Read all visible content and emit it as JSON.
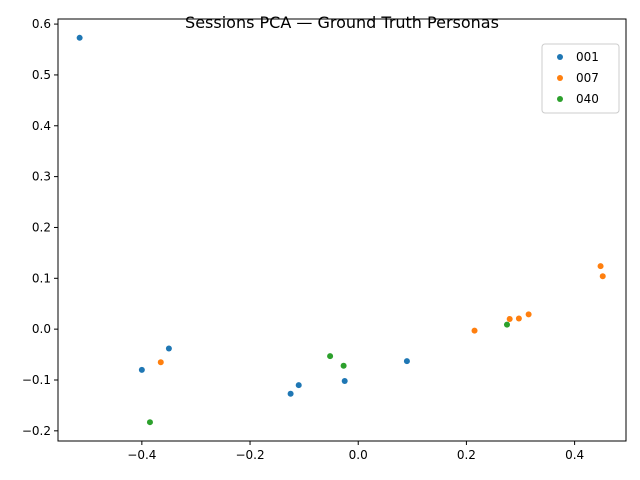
{
  "chart_data": {
    "type": "scatter",
    "title": "Sessions PCA — Ground Truth Personas",
    "xlabel": "",
    "ylabel": "",
    "xlim": [
      -0.555,
      0.495
    ],
    "ylim": [
      -0.22,
      0.61
    ],
    "xticks": [
      -0.4,
      -0.2,
      0.0,
      0.2,
      0.4
    ],
    "xtick_labels": [
      "−0.4",
      "−0.2",
      "0.0",
      "0.2",
      "0.4"
    ],
    "yticks": [
      -0.2,
      -0.1,
      0.0,
      0.1,
      0.2,
      0.3,
      0.4,
      0.5,
      0.6
    ],
    "ytick_labels": [
      "−0.2",
      "−0.1",
      "0.0",
      "0.1",
      "0.2",
      "0.3",
      "0.4",
      "0.5",
      "0.6"
    ],
    "grid": false,
    "legend_position": "top-right",
    "series": [
      {
        "name": "001",
        "color": "#1f77b4",
        "points": [
          [
            -0.515,
            0.573
          ],
          [
            -0.35,
            -0.038
          ],
          [
            -0.4,
            -0.08
          ],
          [
            -0.11,
            -0.11
          ],
          [
            -0.125,
            -0.127
          ],
          [
            -0.025,
            -0.102
          ],
          [
            0.09,
            -0.063
          ]
        ]
      },
      {
        "name": "007",
        "color": "#ff7f0e",
        "points": [
          [
            -0.365,
            -0.065
          ],
          [
            0.215,
            -0.003
          ],
          [
            0.28,
            0.02
          ],
          [
            0.297,
            0.021
          ],
          [
            0.315,
            0.029
          ],
          [
            0.448,
            0.124
          ],
          [
            0.452,
            0.104
          ]
        ]
      },
      {
        "name": "040",
        "color": "#2ca02c",
        "points": [
          [
            -0.052,
            -0.053
          ],
          [
            -0.027,
            -0.072
          ],
          [
            0.275,
            0.009
          ],
          [
            -0.385,
            -0.183
          ]
        ]
      }
    ]
  }
}
